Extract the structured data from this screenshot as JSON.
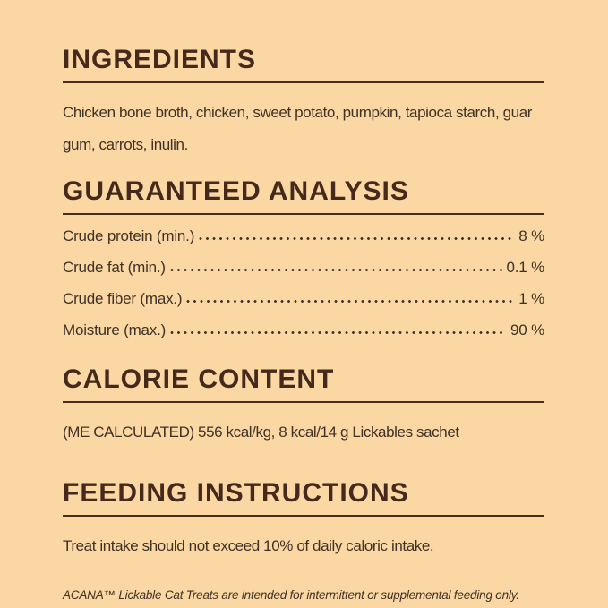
{
  "theme": {
    "bg": "#fad7a3",
    "heading": "#44291c",
    "body": "#3f3126",
    "rule": "#45301c"
  },
  "sections": {
    "ingredients": {
      "title": "INGREDIENTS",
      "body": "Chicken bone broth, chicken, sweet potato, pumpkin, tapioca starch, guar gum, carrots, inulin."
    },
    "guaranteed_analysis": {
      "title": "GUARANTEED ANALYSIS",
      "rows": [
        {
          "label": "Crude protein (min.)",
          "value": "8 %"
        },
        {
          "label": "Crude fat (min.)",
          "value": "0.1 %"
        },
        {
          "label": "Crude fiber (max.)",
          "value": "1 %"
        },
        {
          "label": "Moisture (max.)",
          "value": "90 %"
        }
      ]
    },
    "calorie_content": {
      "title": "CALORIE CONTENT",
      "body": "(ME CALCULATED) 556 kcal/kg, 8 kcal/14 g Lickables sachet"
    },
    "feeding_instructions": {
      "title": "FEEDING INSTRUCTIONS",
      "body": "Treat intake should not exceed 10% of daily caloric intake."
    },
    "footnote": "ACANA™ Lickable Cat Treats are intended for intermittent or supplemental feeding only."
  }
}
